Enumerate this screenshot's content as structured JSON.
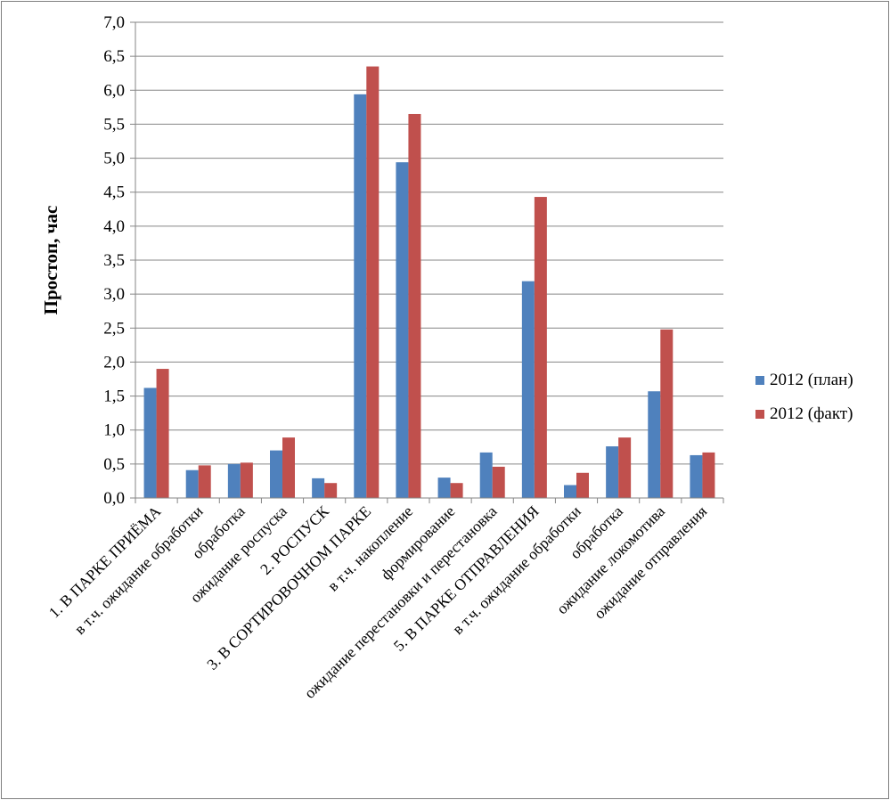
{
  "chart_data": {
    "type": "bar",
    "title": "",
    "xlabel": "",
    "ylabel": "Простоп, час",
    "ylim": [
      0,
      7
    ],
    "ystep": 0.5,
    "grid": true,
    "legend_position": "right",
    "categories": [
      "1. В ПАРКЕ ПРИЁМА",
      "в т.ч. ожидание обработки",
      "обработка",
      "ожидание роспуска",
      "2. РОСПУСК",
      "3. В СОРТИРОВОЧНОМ ПАРКЕ",
      "в т.ч. накопление",
      "формирование",
      "ожидание перестановки  и перестановка",
      "5. В ПАРКЕ ОТПРАВЛЕНИЯ",
      "в т.ч. ожидание обработки",
      "обработка",
      "ожидание локомотива",
      "ожидание отправления"
    ],
    "series": [
      {
        "name": "2012 (план)",
        "color": "#4F81BD",
        "values": [
          1.62,
          0.41,
          0.5,
          0.7,
          0.29,
          5.94,
          4.94,
          0.3,
          0.67,
          3.19,
          0.19,
          0.76,
          1.57,
          0.63
        ]
      },
      {
        "name": "2012 (факт)",
        "color": "#C0504D",
        "values": [
          1.9,
          0.48,
          0.52,
          0.89,
          0.22,
          6.35,
          5.65,
          0.22,
          0.46,
          4.43,
          0.37,
          0.89,
          2.48,
          0.67
        ]
      }
    ]
  }
}
